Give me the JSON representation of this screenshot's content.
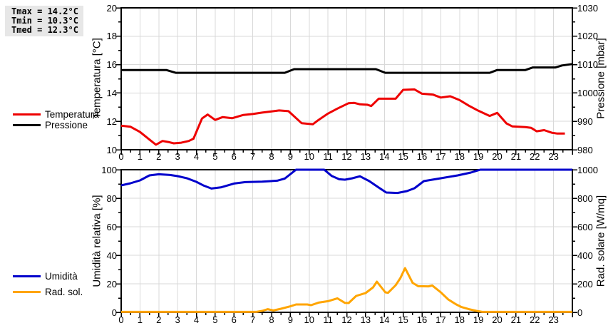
{
  "stats_box": {
    "lines": [
      "Tmax = 14.2°C",
      "Tmin = 10.3°C",
      "Tmed = 12.3°C"
    ]
  },
  "legend": {
    "top": [
      {
        "label": "Temperatura",
        "color": "#ee0000"
      },
      {
        "label": "Pressione",
        "color": "#000000"
      }
    ],
    "bottom": [
      {
        "label": "Umidità",
        "color": "#0000cc"
      },
      {
        "label": "Rad. sol.",
        "color": "#ffa500"
      }
    ]
  },
  "colors": {
    "grid": "#d9d9d9",
    "axis": "#000000",
    "background": "#ffffff",
    "stats_bg": "#e7e7e7"
  },
  "chart_data": [
    {
      "type": "line",
      "title": "",
      "xlabel": "",
      "ylabel_left": "Temperatura [°C]",
      "ylabel_right": "Pressione [mbar]",
      "xlim": [
        0,
        24
      ],
      "x_ticks": [
        0,
        1,
        2,
        3,
        4,
        5,
        6,
        7,
        8,
        9,
        10,
        11,
        12,
        13,
        14,
        15,
        16,
        17,
        18,
        19,
        20,
        21,
        22,
        23
      ],
      "ylim_left": [
        10,
        20
      ],
      "y_ticks_left": [
        10,
        12,
        14,
        16,
        18,
        20
      ],
      "ylim_right": [
        980,
        1030
      ],
      "y_ticks_right": [
        980,
        990,
        1000,
        1010,
        1020,
        1030
      ],
      "grid": true,
      "series": [
        {
          "name": "Temperatura",
          "color": "#ee0000",
          "axis": "left",
          "points": [
            [
              0,
              11.7
            ],
            [
              0.5,
              11.62
            ],
            [
              1,
              11.25
            ],
            [
              1.5,
              10.72
            ],
            [
              1.85,
              10.35
            ],
            [
              2.2,
              10.62
            ],
            [
              2.5,
              10.55
            ],
            [
              2.8,
              10.45
            ],
            [
              3.2,
              10.5
            ],
            [
              3.6,
              10.62
            ],
            [
              3.85,
              10.78
            ],
            [
              4.3,
              12.2
            ],
            [
              4.6,
              12.48
            ],
            [
              5,
              12.1
            ],
            [
              5.4,
              12.3
            ],
            [
              5.9,
              12.22
            ],
            [
              6.5,
              12.45
            ],
            [
              7,
              12.52
            ],
            [
              7.5,
              12.62
            ],
            [
              8,
              12.7
            ],
            [
              8.4,
              12.77
            ],
            [
              8.9,
              12.72
            ],
            [
              9.6,
              11.87
            ],
            [
              10.2,
              11.8
            ],
            [
              10.5,
              12.1
            ],
            [
              11,
              12.55
            ],
            [
              11.5,
              12.9
            ],
            [
              12.1,
              13.28
            ],
            [
              12.4,
              13.3
            ],
            [
              12.7,
              13.2
            ],
            [
              13.1,
              13.17
            ],
            [
              13.3,
              13.08
            ],
            [
              13.7,
              13.6
            ],
            [
              14.6,
              13.6
            ],
            [
              15,
              14.22
            ],
            [
              15.6,
              14.25
            ],
            [
              16,
              13.95
            ],
            [
              16.6,
              13.88
            ],
            [
              17,
              13.68
            ],
            [
              17.5,
              13.77
            ],
            [
              18,
              13.5
            ],
            [
              18.5,
              13.1
            ],
            [
              19,
              12.75
            ],
            [
              19.6,
              12.38
            ],
            [
              20,
              12.6
            ],
            [
              20.5,
              11.85
            ],
            [
              20.8,
              11.65
            ],
            [
              21.5,
              11.6
            ],
            [
              21.8,
              11.55
            ],
            [
              22.1,
              11.3
            ],
            [
              22.5,
              11.38
            ],
            [
              22.9,
              11.2
            ],
            [
              23.2,
              11.14
            ],
            [
              23.6,
              11.14
            ]
          ]
        },
        {
          "name": "Pressione",
          "color": "#000000",
          "axis": "right",
          "points": [
            [
              0,
              1008.1
            ],
            [
              2.4,
              1008.1
            ],
            [
              2.9,
              1007.1
            ],
            [
              8.7,
              1007.1
            ],
            [
              9.2,
              1008.4
            ],
            [
              13.55,
              1008.4
            ],
            [
              14.05,
              1007.1
            ],
            [
              19.6,
              1007.1
            ],
            [
              20,
              1008.1
            ],
            [
              21.5,
              1008.1
            ],
            [
              21.9,
              1009
            ],
            [
              23.1,
              1009
            ],
            [
              23.45,
              1009.7
            ],
            [
              24,
              1010.2
            ]
          ]
        }
      ]
    },
    {
      "type": "line",
      "title": "",
      "xlabel": "",
      "ylabel_left": "Umidità relativa [%]",
      "ylabel_right": "Rad. solare [W/mq]",
      "xlim": [
        0,
        24
      ],
      "x_ticks": [
        0,
        1,
        2,
        3,
        4,
        5,
        6,
        7,
        8,
        9,
        10,
        11,
        12,
        13,
        14,
        15,
        16,
        17,
        18,
        19,
        20,
        21,
        22,
        23
      ],
      "ylim_left": [
        0,
        100
      ],
      "y_ticks_left": [
        0,
        20,
        40,
        60,
        80,
        100
      ],
      "ylim_right": [
        0,
        1000
      ],
      "y_ticks_right": [
        0,
        200,
        400,
        600,
        800,
        1000
      ],
      "grid": true,
      "series": [
        {
          "name": "Umidità",
          "color": "#0000cc",
          "axis": "left",
          "points": [
            [
              0,
              89
            ],
            [
              0.5,
              90.5
            ],
            [
              1,
              92.5
            ],
            [
              1.5,
              96
            ],
            [
              2,
              96.8
            ],
            [
              2.6,
              96.3
            ],
            [
              3,
              95.5
            ],
            [
              3.5,
              94
            ],
            [
              4,
              91.5
            ],
            [
              4.4,
              88.8
            ],
            [
              4.8,
              86.8
            ],
            [
              5.3,
              87.6
            ],
            [
              6,
              90.3
            ],
            [
              6.6,
              91.3
            ],
            [
              7.5,
              91.6
            ],
            [
              8.3,
              92.3
            ],
            [
              8.7,
              93.8
            ],
            [
              9.3,
              100
            ],
            [
              10.8,
              100
            ],
            [
              11.2,
              95.6
            ],
            [
              11.6,
              93.3
            ],
            [
              11.9,
              93
            ],
            [
              12.3,
              94
            ],
            [
              12.7,
              95.4
            ],
            [
              13.2,
              92
            ],
            [
              13.7,
              87.5
            ],
            [
              14.1,
              84
            ],
            [
              14.7,
              83.7
            ],
            [
              15.2,
              85
            ],
            [
              15.6,
              87
            ],
            [
              16.1,
              92
            ],
            [
              17,
              94
            ],
            [
              17.9,
              96
            ],
            [
              18.6,
              98
            ],
            [
              19.1,
              100
            ],
            [
              24,
              100
            ]
          ]
        },
        {
          "name": "Rad. sol.",
          "color": "#ffa500",
          "axis": "right",
          "points": [
            [
              0,
              3
            ],
            [
              7.2,
              3
            ],
            [
              7.5,
              10
            ],
            [
              7.8,
              22
            ],
            [
              8.1,
              13
            ],
            [
              8.5,
              25
            ],
            [
              9,
              42
            ],
            [
              9.3,
              55
            ],
            [
              9.9,
              55
            ],
            [
              10.1,
              50
            ],
            [
              10.5,
              68
            ],
            [
              11,
              78
            ],
            [
              11.5,
              98
            ],
            [
              11.9,
              66
            ],
            [
              12.1,
              65
            ],
            [
              12.5,
              115
            ],
            [
              13,
              135
            ],
            [
              13.4,
              175
            ],
            [
              13.6,
              215
            ],
            [
              14.05,
              140
            ],
            [
              14.2,
              137
            ],
            [
              14.6,
              190
            ],
            [
              14.85,
              240
            ],
            [
              15.1,
              310
            ],
            [
              15.5,
              207
            ],
            [
              15.8,
              183
            ],
            [
              16.35,
              182
            ],
            [
              16.55,
              188
            ],
            [
              17,
              140
            ],
            [
              17.4,
              90
            ],
            [
              17.8,
              57
            ],
            [
              18.1,
              37
            ],
            [
              18.5,
              22
            ],
            [
              18.9,
              10
            ],
            [
              19.2,
              3
            ],
            [
              24,
              3
            ]
          ]
        }
      ]
    }
  ]
}
